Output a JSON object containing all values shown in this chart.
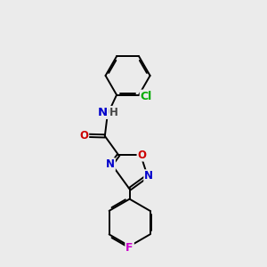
{
  "bg_color": "#ebebeb",
  "bond_color": "#000000",
  "bond_width": 1.4,
  "atom_colors": {
    "N": "#0000cc",
    "O": "#cc0000",
    "Cl": "#00aa00",
    "F": "#cc00cc",
    "H": "#444444"
  },
  "font_size": 8.5,
  "figsize": [
    3.0,
    3.0
  ],
  "dpi": 100
}
